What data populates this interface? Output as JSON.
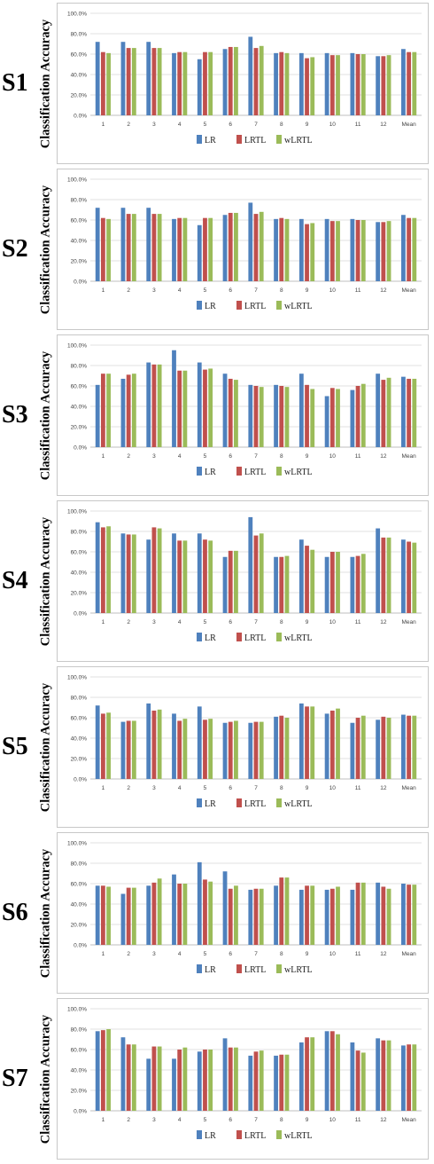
{
  "legend": [
    "LR",
    "LRTL",
    "wLRTL"
  ],
  "ylabel": "Classification Accuracy",
  "colors": {
    "LR": "#4f81bd",
    "LRTL": "#c0504d",
    "wLRTL": "#9bbb59"
  },
  "chart_data": [
    {
      "type": "bar",
      "subject": "S1",
      "categories": [
        "1",
        "2",
        "3",
        "4",
        "5",
        "6",
        "7",
        "8",
        "9",
        "10",
        "11",
        "12",
        "Mean"
      ],
      "yticks": [
        "0.0%",
        "20.0%",
        "40.0%",
        "60.0%",
        "80.0%",
        "100.0%"
      ],
      "ylim": [
        0,
        100
      ],
      "series": [
        {
          "name": "LR",
          "values": [
            72,
            72,
            72,
            61,
            55,
            65,
            77,
            61,
            61,
            61,
            61,
            58,
            65
          ]
        },
        {
          "name": "LRTL",
          "values": [
            62,
            66,
            66,
            62,
            62,
            67,
            66,
            62,
            56,
            59,
            60,
            58,
            62
          ]
        },
        {
          "name": "wLRTL",
          "values": [
            61,
            66,
            66,
            62,
            62,
            67,
            68,
            61,
            57,
            59,
            60,
            59,
            62
          ]
        }
      ]
    },
    {
      "type": "bar",
      "subject": "S2",
      "categories": [
        "1",
        "2",
        "3",
        "4",
        "5",
        "6",
        "7",
        "8",
        "9",
        "10",
        "11",
        "12",
        "Mean"
      ],
      "yticks": [
        "0.0%",
        "20.0%",
        "40.0%",
        "60.0%",
        "80.0%",
        "100.0%"
      ],
      "ylim": [
        0,
        100
      ],
      "series": [
        {
          "name": "LR",
          "values": [
            72,
            72,
            72,
            61,
            55,
            65,
            77,
            61,
            61,
            61,
            61,
            58,
            65
          ]
        },
        {
          "name": "LRTL",
          "values": [
            62,
            66,
            66,
            62,
            62,
            67,
            66,
            62,
            56,
            59,
            60,
            58,
            62
          ]
        },
        {
          "name": "wLRTL",
          "values": [
            61,
            66,
            66,
            62,
            62,
            67,
            68,
            61,
            57,
            59,
            60,
            59,
            62
          ]
        }
      ]
    },
    {
      "type": "bar",
      "subject": "S3",
      "categories": [
        "1",
        "2",
        "3",
        "4",
        "5",
        "6",
        "7",
        "8",
        "9",
        "10",
        "11",
        "12",
        "Mean"
      ],
      "yticks": [
        "0.0%",
        "20.0%",
        "40.0%",
        "60.0%",
        "80.0%",
        "100.0%"
      ],
      "ylim": [
        0,
        100
      ],
      "series": [
        {
          "name": "LR",
          "values": [
            61,
            67,
            83,
            95,
            83,
            72,
            61,
            61,
            72,
            50,
            56,
            72,
            69
          ]
        },
        {
          "name": "LRTL",
          "values": [
            72,
            71,
            81,
            75,
            76,
            67,
            60,
            60,
            61,
            58,
            60,
            66,
            67
          ]
        },
        {
          "name": "wLRTL",
          "values": [
            72,
            72,
            81,
            75,
            77,
            66,
            59,
            59,
            57,
            57,
            62,
            68,
            67
          ]
        }
      ]
    },
    {
      "type": "bar",
      "subject": "S4",
      "categories": [
        "1",
        "2",
        "3",
        "4",
        "5",
        "6",
        "7",
        "8",
        "9",
        "10",
        "11",
        "12",
        "Mean"
      ],
      "yticks": [
        "0.0%",
        "20.0%",
        "40.0%",
        "60.0%",
        "80.0%",
        "100.0%"
      ],
      "ylim": [
        0,
        100
      ],
      "series": [
        {
          "name": "LR",
          "values": [
            89,
            78,
            72,
            78,
            78,
            55,
            94,
            55,
            72,
            55,
            55,
            83,
            72
          ]
        },
        {
          "name": "LRTL",
          "values": [
            84,
            77,
            84,
            71,
            72,
            61,
            76,
            55,
            66,
            60,
            56,
            74,
            70
          ]
        },
        {
          "name": "wLRTL",
          "values": [
            85,
            77,
            83,
            71,
            71,
            61,
            78,
            56,
            62,
            60,
            58,
            74,
            69
          ]
        }
      ]
    },
    {
      "type": "bar",
      "subject": "S5",
      "categories": [
        "1",
        "2",
        "3",
        "4",
        "5",
        "6",
        "7",
        "8",
        "9",
        "10",
        "11",
        "12",
        "Mean"
      ],
      "yticks": [
        "0.0%",
        "20.0%",
        "40.0%",
        "60.0%",
        "80.0%",
        "100.0%"
      ],
      "ylim": [
        0,
        100
      ],
      "series": [
        {
          "name": "LR",
          "values": [
            72,
            56,
            74,
            64,
            71,
            55,
            55,
            61,
            74,
            64,
            55,
            58,
            63
          ]
        },
        {
          "name": "LRTL",
          "values": [
            64,
            57,
            67,
            57,
            58,
            56,
            56,
            62,
            71,
            67,
            60,
            61,
            62
          ]
        },
        {
          "name": "wLRTL",
          "values": [
            65,
            57,
            68,
            59,
            59,
            57,
            56,
            60,
            71,
            69,
            62,
            60,
            62
          ]
        }
      ]
    },
    {
      "type": "bar",
      "subject": "S6",
      "categories": [
        "1",
        "2",
        "3",
        "4",
        "5",
        "6",
        "7",
        "8",
        "9",
        "10",
        "11",
        "12",
        "Mean"
      ],
      "yticks": [
        "0.0%",
        "20.0%",
        "40.0%",
        "60.0%",
        "80.0%",
        "100.0%"
      ],
      "ylim": [
        0,
        100
      ],
      "series": [
        {
          "name": "LR",
          "values": [
            58,
            50,
            58,
            69,
            81,
            72,
            54,
            58,
            54,
            54,
            54,
            61,
            60
          ]
        },
        {
          "name": "LRTL",
          "values": [
            58,
            56,
            61,
            60,
            64,
            55,
            55,
            66,
            58,
            55,
            61,
            57,
            59
          ]
        },
        {
          "name": "wLRTL",
          "values": [
            57,
            56,
            65,
            60,
            62,
            58,
            55,
            66,
            58,
            57,
            61,
            55,
            59
          ]
        }
      ]
    },
    {
      "type": "bar",
      "subject": "S7",
      "categories": [
        "1",
        "2",
        "3",
        "4",
        "5",
        "6",
        "7",
        "8",
        "9",
        "10",
        "11",
        "12",
        "Mean"
      ],
      "yticks": [
        "0.0%",
        "20.0%",
        "40.0%",
        "60.0%",
        "80.0%",
        "100.0%"
      ],
      "ylim": [
        0,
        100
      ],
      "series": [
        {
          "name": "LR",
          "values": [
            78,
            72,
            51,
            51,
            58,
            71,
            54,
            54,
            67,
            78,
            67,
            71,
            64
          ]
        },
        {
          "name": "LRTL",
          "values": [
            79,
            65,
            63,
            60,
            60,
            62,
            58,
            55,
            72,
            78,
            59,
            69,
            65
          ]
        },
        {
          "name": "wLRTL",
          "values": [
            80,
            65,
            63,
            62,
            60,
            62,
            59,
            55,
            72,
            75,
            57,
            69,
            65
          ]
        }
      ]
    }
  ]
}
